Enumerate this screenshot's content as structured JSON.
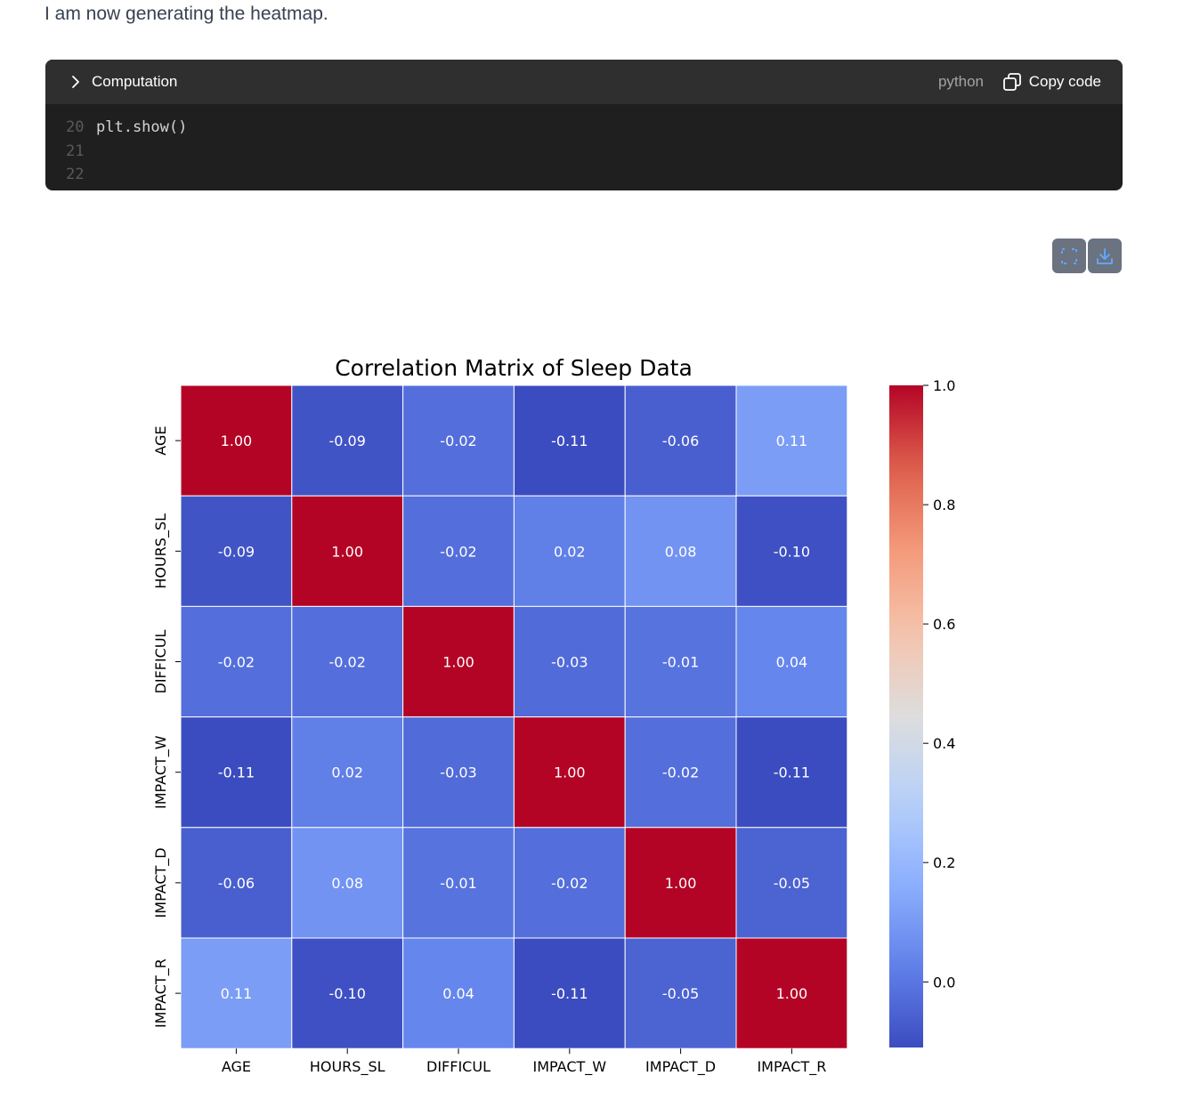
{
  "message": {
    "text": "I am now generating the heatmap."
  },
  "code_block": {
    "toggle_label": "Computation",
    "language": "python",
    "copy_label": "Copy code",
    "lines": [
      {
        "number": "20",
        "code": "plt.show()"
      },
      {
        "number": "21",
        "code": ""
      },
      {
        "number": "22",
        "code": ""
      }
    ]
  },
  "image_tools": {
    "expand_icon": "expand-icon",
    "download_icon": "download-icon"
  },
  "colors": {
    "low": "#3b4cc0",
    "mid": "#dddddd",
    "high": "#b40426"
  },
  "chart_data": {
    "type": "heatmap",
    "title": "Correlation Matrix of Sleep Data",
    "x_labels": [
      "AGE",
      "HOURS_SL",
      "DIFFICUL",
      "IMPACT_W",
      "IMPACT_D",
      "IMPACT_R"
    ],
    "y_labels": [
      "AGE",
      "HOURS_SL",
      "DIFFICUL",
      "IMPACT_W",
      "IMPACT_D",
      "IMPACT_R"
    ],
    "values": [
      [
        1.0,
        -0.09,
        -0.02,
        -0.11,
        -0.06,
        0.11
      ],
      [
        -0.09,
        1.0,
        -0.02,
        0.02,
        0.08,
        -0.1
      ],
      [
        -0.02,
        -0.02,
        1.0,
        -0.03,
        -0.01,
        0.04
      ],
      [
        -0.11,
        0.02,
        -0.03,
        1.0,
        -0.02,
        -0.11
      ],
      [
        -0.06,
        0.08,
        -0.01,
        -0.02,
        1.0,
        -0.05
      ],
      [
        0.11,
        -0.1,
        0.04,
        -0.11,
        -0.05,
        1.0
      ]
    ],
    "annotation_format": "0.00",
    "colorbar": {
      "colormap": "coolwarm",
      "min": -0.11,
      "max": 1.0,
      "ticks": [
        0.0,
        0.2,
        0.4,
        0.6,
        0.8,
        1.0
      ],
      "tick_labels": [
        "0.0",
        "0.2",
        "0.4",
        "0.6",
        "0.8",
        "1.0"
      ]
    }
  }
}
